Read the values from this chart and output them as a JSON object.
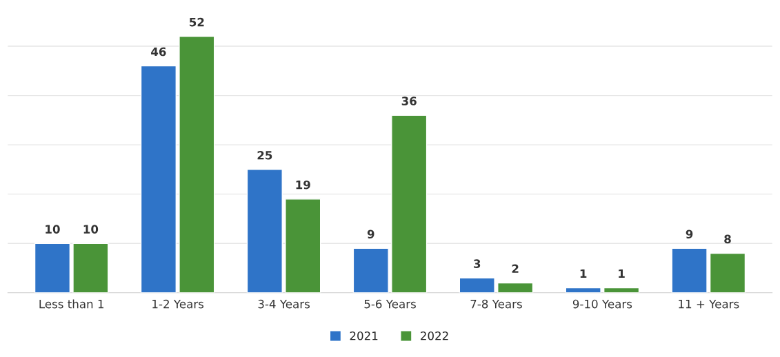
{
  "chart_data": {
    "type": "bar",
    "categories": [
      "Less than 1",
      "1-2 Years",
      "3-4 Years",
      "5-6 Years",
      "7-8 Years",
      "9-10 Years",
      "11 + Years"
    ],
    "series": [
      {
        "name": "2021",
        "color": "#2f74c8",
        "values": [
          10,
          46,
          25,
          9,
          3,
          1,
          9
        ]
      },
      {
        "name": "2022",
        "color": "#4a9438",
        "values": [
          10,
          52,
          19,
          36,
          2,
          1,
          8
        ]
      }
    ],
    "yticks": [
      {
        "value": 0,
        "label": null
      },
      {
        "value": 10,
        "label": null
      },
      {
        "value": 20,
        "label": null
      },
      {
        "value": 30,
        "label": null
      },
      {
        "value": 40,
        "label": null
      },
      {
        "value": 50,
        "label": null
      }
    ],
    "grid": "y",
    "tick_labels": "x",
    "data_labels": true,
    "legend": "bottom"
  }
}
